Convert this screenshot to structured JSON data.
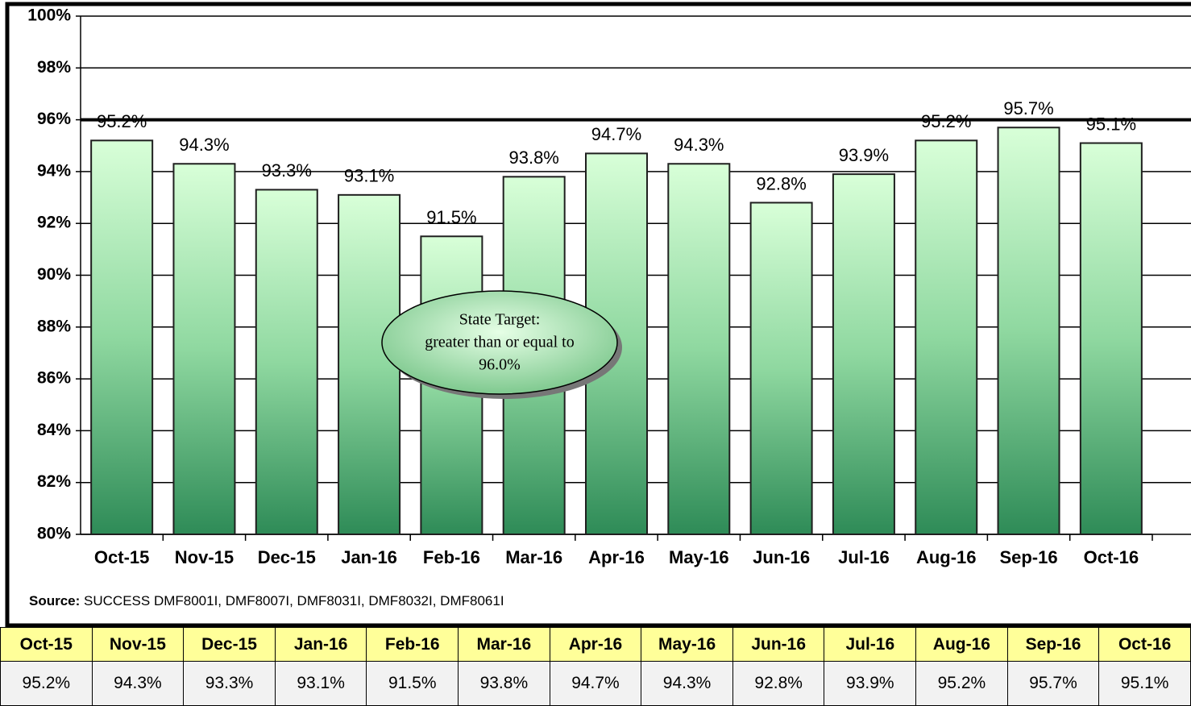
{
  "chart_data": {
    "type": "bar",
    "categories": [
      "Oct-15",
      "Nov-15",
      "Dec-15",
      "Jan-16",
      "Feb-16",
      "Mar-16",
      "Apr-16",
      "May-16",
      "Jun-16",
      "Jul-16",
      "Aug-16",
      "Sep-16",
      "Oct-16"
    ],
    "values": [
      95.2,
      94.3,
      93.3,
      93.1,
      91.5,
      93.8,
      94.7,
      94.3,
      92.8,
      93.9,
      95.2,
      95.7,
      95.1
    ],
    "value_labels": [
      "95.2%",
      "94.3%",
      "93.3%",
      "93.1%",
      "91.5%",
      "93.8%",
      "94.7%",
      "94.3%",
      "92.8%",
      "93.9%",
      "95.2%",
      "95.7%",
      "95.1%"
    ],
    "ylim": [
      80,
      100
    ],
    "yticks": [
      {
        "value": 80,
        "label": "80%"
      },
      {
        "value": 82,
        "label": "82%"
      },
      {
        "value": 84,
        "label": "84%"
      },
      {
        "value": 86,
        "label": "86%"
      },
      {
        "value": 88,
        "label": "88%"
      },
      {
        "value": 90,
        "label": "90%"
      },
      {
        "value": 92,
        "label": "92%"
      },
      {
        "value": 94,
        "label": "94%"
      },
      {
        "value": 96,
        "label": "96%"
      },
      {
        "value": 98,
        "label": "98%"
      },
      {
        "value": 100,
        "label": "100%"
      }
    ],
    "grid": true,
    "target": 96,
    "annotation": [
      "State Target:",
      "greater than or equal to",
      "96.0%"
    ],
    "source_label": "Source:",
    "source": "SUCCESS DMF8001I, DMF8007I, DMF8031I, DMF8032I, DMF8061I"
  }
}
